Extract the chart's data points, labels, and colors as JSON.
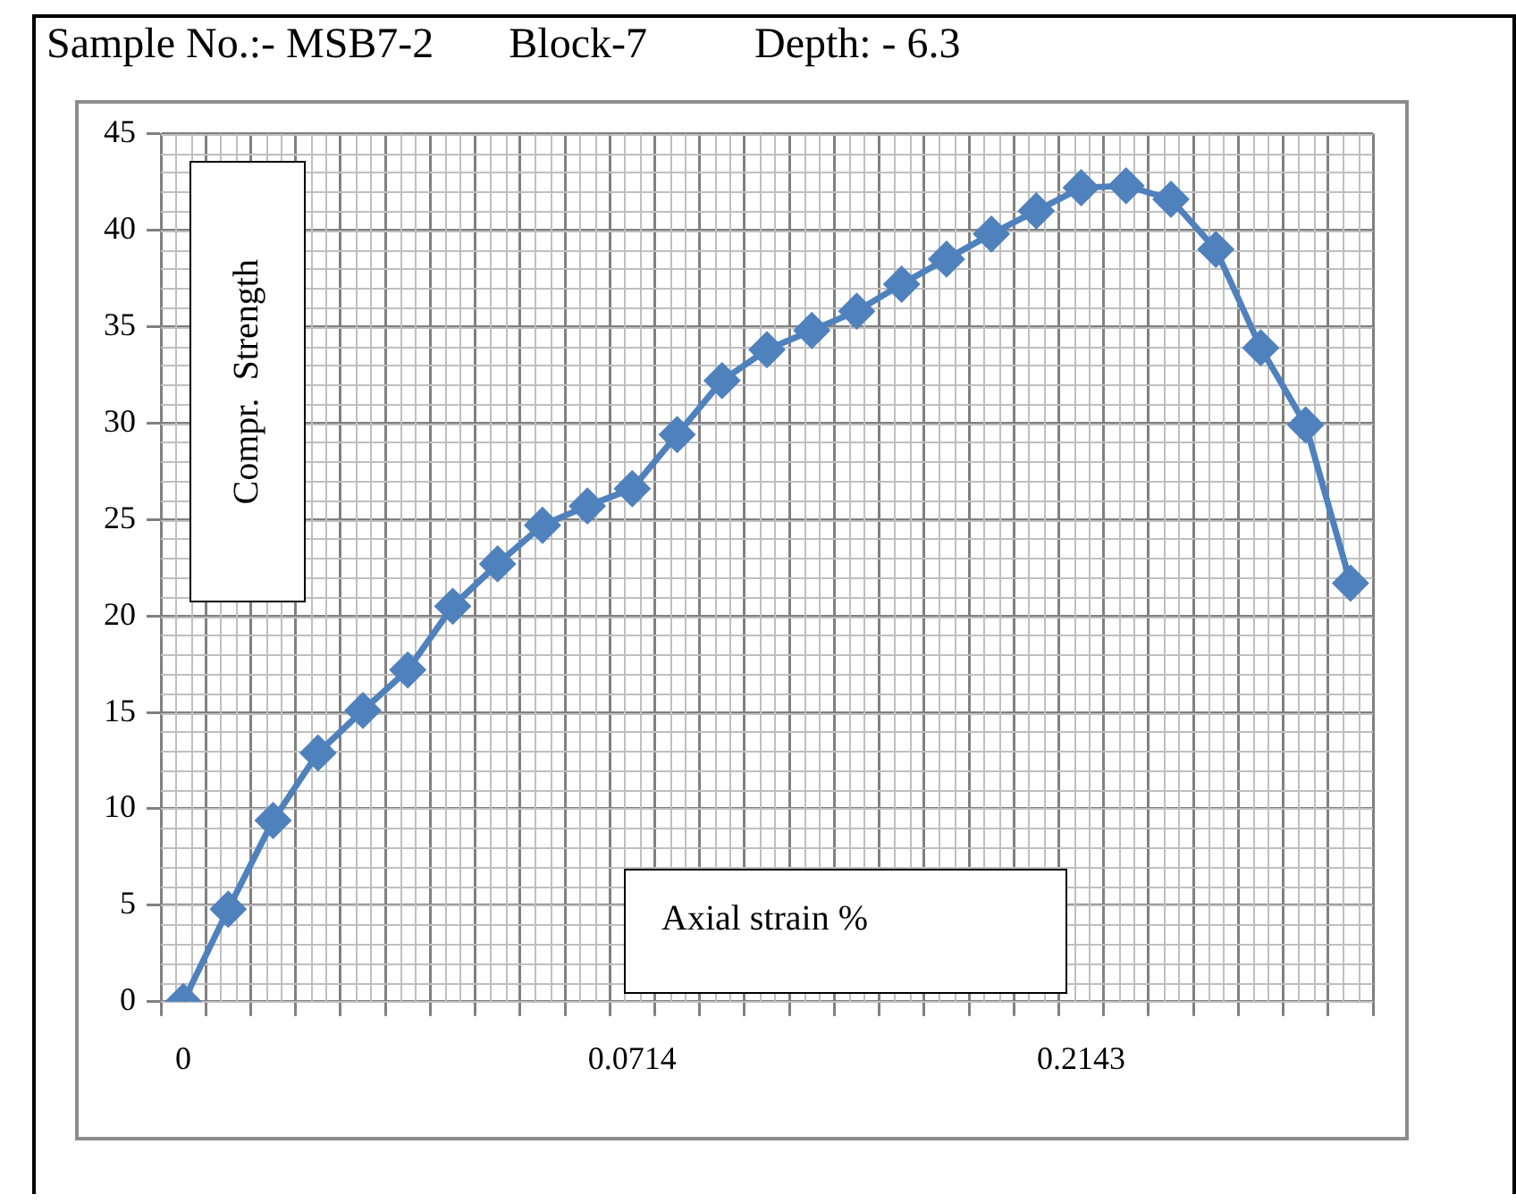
{
  "chart_data": {
    "type": "line",
    "title": "Sample No.:- MSB7-2       Block-7          Depth: - 6.3",
    "xlabel": "Axial strain %",
    "ylabel": "Compr.  Strength",
    "categories": [
      "0",
      null,
      null,
      null,
      null,
      null,
      null,
      null,
      null,
      null,
      "0.0714",
      null,
      null,
      null,
      null,
      null,
      null,
      null,
      null,
      null,
      "0.2143",
      null,
      null,
      null,
      null,
      null,
      null
    ],
    "series": [
      {
        "color": "#4f81bd",
        "values": [
          0,
          4.8,
          9.4,
          12.9,
          15.1,
          17.2,
          20.5,
          22.7,
          24.7,
          25.7,
          26.6,
          29.4,
          32.2,
          33.8,
          34.8,
          35.8,
          37.2,
          38.5,
          39.8,
          41.0,
          42.2,
          42.3,
          41.6,
          39.0,
          33.9,
          29.9,
          21.7
        ]
      }
    ],
    "ylim": [
      0,
      45
    ],
    "yticks": [
      0,
      5,
      10,
      15,
      20,
      25,
      30,
      35,
      40,
      45
    ],
    "grid": true,
    "legend": false,
    "marker": "diamond",
    "line_style": "solid"
  }
}
